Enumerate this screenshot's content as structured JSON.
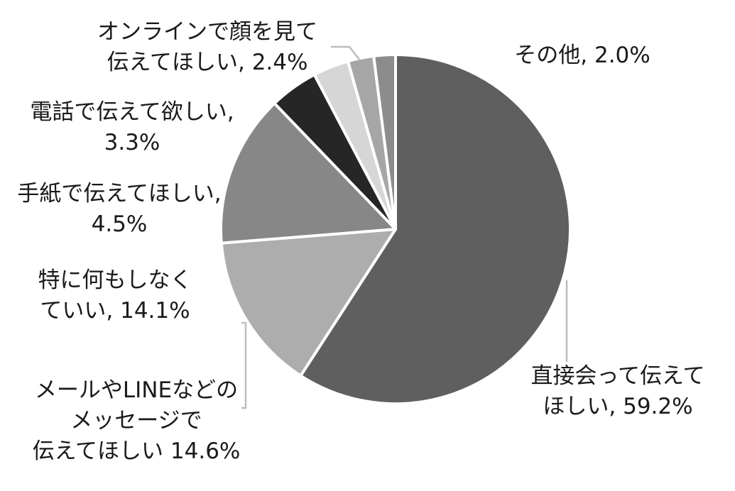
{
  "chart_data": {
    "type": "pie",
    "start_angle": 0,
    "direction": "clockwise",
    "slices": [
      {
        "lines": [
          "直接会って伝えて",
          "ほしい, 59.2%"
        ],
        "value": 59.2,
        "color": "#5f5f5f"
      },
      {
        "lines": [
          "メールやLINEなどの",
          "メッセージで",
          "伝えてほしい 14.6%"
        ],
        "value": 14.6,
        "color": "#adadad"
      },
      {
        "lines": [
          "特に何もしなく",
          "ていい, 14.1%"
        ],
        "value": 14.1,
        "color": "#878787"
      },
      {
        "lines": [
          "手紙で伝えてほしい,",
          "4.5%"
        ],
        "value": 4.5,
        "color": "#262626"
      },
      {
        "lines": [
          "電話で伝えて欲しい,",
          "3.3%"
        ],
        "value": 3.3,
        "color": "#d6d6d6"
      },
      {
        "lines": [
          "オンラインで顔を見て",
          "伝えてほしい, 2.4%"
        ],
        "value": 2.4,
        "color": "#a6a6a6"
      },
      {
        "lines": [
          "その他, 2.0%"
        ],
        "value": 2.0,
        "color": "#8c8c8c"
      }
    ]
  }
}
